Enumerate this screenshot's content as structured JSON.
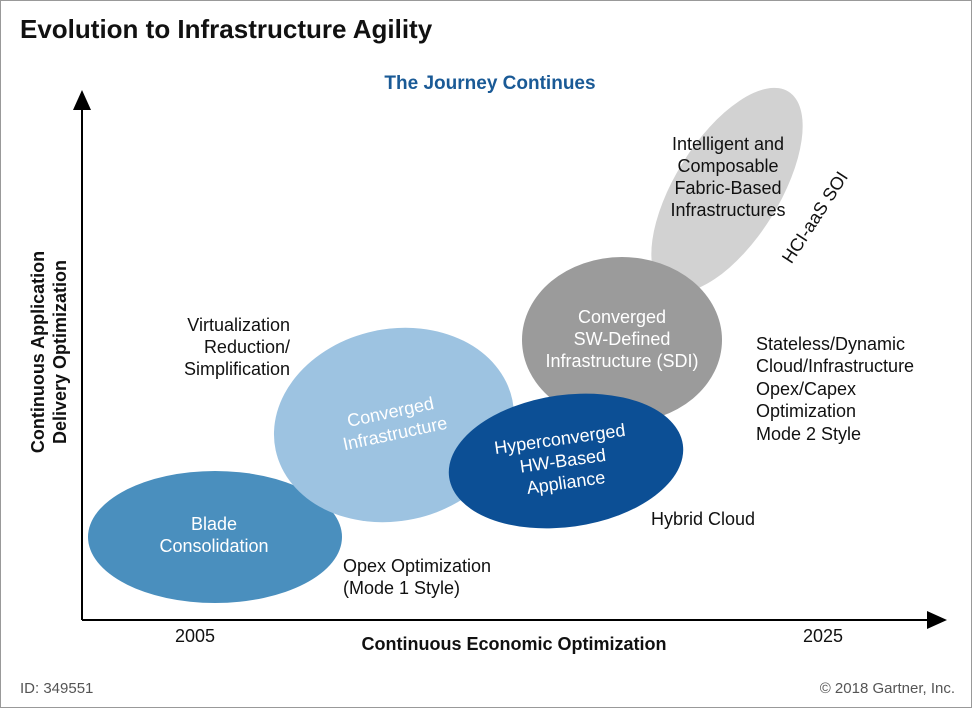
{
  "header": {
    "title": "Evolution to Infrastructure Agility",
    "subtitle": "The Journey Continues"
  },
  "axes": {
    "y_label": {
      "lines": [
        "Continuous Application",
        "Delivery Optimization"
      ]
    },
    "x_label": "Continuous Economic Optimization",
    "x_start": "2005",
    "x_end": "2025"
  },
  "stages": [
    {
      "label": {
        "lines": [
          "Blade",
          "Consolidation"
        ]
      }
    },
    {
      "label": {
        "lines": [
          "Converged",
          "Infrastructure"
        ]
      }
    },
    {
      "label": {
        "lines": [
          "Converged",
          "SW-Defined",
          "Infrastructure (SDI)"
        ]
      }
    },
    {
      "label": {
        "lines": [
          "Hyperconverged",
          "HW-Based",
          "Appliance"
        ]
      }
    },
    {
      "label": {
        "lines": [
          "Intelligent and",
          "Composable",
          "Fabric-Based",
          "Infrastructures"
        ]
      }
    }
  ],
  "annotations": [
    {
      "lines": [
        "Virtualization",
        "Reduction/",
        "Simplification"
      ]
    },
    {
      "lines": [
        "Opex Optimization",
        "(Mode 1 Style)"
      ]
    },
    {
      "lines": [
        "Hybrid Cloud"
      ]
    },
    {
      "lines": [
        "Stateless/Dynamic",
        "Cloud/Infrastructure",
        "Opex/Capex",
        "Optimization",
        "Mode 2 Style"
      ]
    },
    {
      "lines": [
        "HCI-aaS SOI"
      ]
    }
  ],
  "footer": {
    "id": "ID: 349551",
    "copyright": "© 2018 Gartner, Inc."
  }
}
